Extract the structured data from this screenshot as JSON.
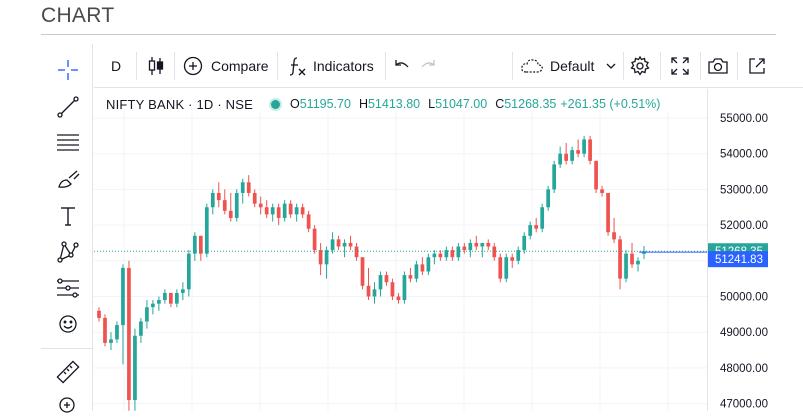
{
  "page": {
    "title": "CHART"
  },
  "toolbar": {
    "interval": "D",
    "compare_label": "Compare",
    "indicators_label": "Indicators",
    "layout_label": "Default"
  },
  "left_tools": [
    {
      "name": "crosshair-icon"
    },
    {
      "name": "trend-line-icon"
    },
    {
      "name": "fib-retracement-icon"
    },
    {
      "name": "brush-icon"
    },
    {
      "name": "text-tool-icon"
    },
    {
      "name": "pattern-icon"
    },
    {
      "name": "prediction-icon"
    },
    {
      "name": "emoji-icon"
    },
    {
      "name": "ruler-icon"
    },
    {
      "name": "zoom-in-icon"
    }
  ],
  "legend": {
    "symbol": "NIFTY BANK · 1D · NSE",
    "o_label": "O",
    "o": "51195.70",
    "h_label": "H",
    "h": "51413.80",
    "l_label": "L",
    "l": "51047.00",
    "c_label": "C",
    "c": "51268.35",
    "change": "+261.35 (+0.51%)"
  },
  "price_axis": {
    "labels": [
      "55000.00",
      "54000.00",
      "53000.00",
      "52000.00",
      "51000.00",
      "50000.00",
      "49000.00",
      "48000.00",
      "47000.00"
    ],
    "last_price": "51268.35",
    "crosshair_price": "51241.83"
  },
  "colors": {
    "up": "#26a69a",
    "down": "#ef5350",
    "last_price_line": "#26a69a",
    "crosshair_label": "#2962ff"
  },
  "chart_data": {
    "type": "candlestick",
    "y_range": [
      46900,
      55700
    ],
    "candles": [
      [
        49600,
        49700,
        49300,
        49400
      ],
      [
        49400,
        49500,
        48600,
        48700
      ],
      [
        48700,
        49000,
        48500,
        48800
      ],
      [
        48800,
        49300,
        48700,
        49200
      ],
      [
        49200,
        50900,
        48100,
        50800
      ],
      [
        50800,
        51000,
        46800,
        47100
      ],
      [
        47100,
        49100,
        46800,
        48900
      ],
      [
        48900,
        49400,
        48700,
        49300
      ],
      [
        49300,
        49900,
        49100,
        49700
      ],
      [
        49700,
        49900,
        49500,
        49800
      ],
      [
        49800,
        50000,
        49600,
        49900
      ],
      [
        49900,
        50200,
        49800,
        50100
      ],
      [
        50100,
        50100,
        49700,
        49800
      ],
      [
        49800,
        50200,
        49700,
        50100
      ],
      [
        50100,
        50400,
        49900,
        50200
      ],
      [
        50200,
        51300,
        50000,
        51200
      ],
      [
        51200,
        51800,
        51000,
        51700
      ],
      [
        51700,
        51700,
        51000,
        51200
      ],
      [
        51200,
        52600,
        51100,
        52500
      ],
      [
        52500,
        53000,
        52300,
        52900
      ],
      [
        52900,
        53200,
        52500,
        52700
      ],
      [
        52700,
        53000,
        52300,
        52400
      ],
      [
        52400,
        52900,
        52100,
        52200
      ],
      [
        52200,
        53000,
        52100,
        52900
      ],
      [
        52900,
        53300,
        52600,
        53200
      ],
      [
        53200,
        53400,
        52800,
        52900
      ],
      [
        52900,
        53000,
        52500,
        52600
      ],
      [
        52600,
        52800,
        52300,
        52500
      ],
      [
        52500,
        52700,
        52200,
        52300
      ],
      [
        52300,
        52600,
        52100,
        52500
      ],
      [
        52500,
        52600,
        52000,
        52200
      ],
      [
        52200,
        52700,
        52100,
        52600
      ],
      [
        52600,
        52700,
        52200,
        52300
      ],
      [
        52300,
        52600,
        52100,
        52500
      ],
      [
        52500,
        52600,
        52200,
        52300
      ],
      [
        52300,
        52400,
        51800,
        51900
      ],
      [
        51900,
        52000,
        51200,
        51300
      ],
      [
        51300,
        51500,
        50600,
        50900
      ],
      [
        50900,
        51400,
        50500,
        51300
      ],
      [
        51300,
        51800,
        51200,
        51600
      ],
      [
        51600,
        51700,
        51300,
        51400
      ],
      [
        51400,
        51600,
        51100,
        51500
      ],
      [
        51500,
        51700,
        51300,
        51400
      ],
      [
        51400,
        51500,
        51000,
        51100
      ],
      [
        51100,
        51100,
        50200,
        50300
      ],
      [
        50300,
        50800,
        49900,
        50000
      ],
      [
        50000,
        50400,
        49800,
        50200
      ],
      [
        50200,
        50700,
        50000,
        50600
      ],
      [
        50600,
        50700,
        50300,
        50400
      ],
      [
        50400,
        50500,
        49900,
        50000
      ],
      [
        50000,
        50100,
        49800,
        49900
      ],
      [
        49900,
        50700,
        49800,
        50600
      ],
      [
        50600,
        50800,
        50400,
        50500
      ],
      [
        50500,
        51000,
        50400,
        50900
      ],
      [
        50900,
        51100,
        50600,
        50700
      ],
      [
        50700,
        51200,
        50600,
        51100
      ],
      [
        51100,
        51300,
        50900,
        51200
      ],
      [
        51200,
        51300,
        51000,
        51100
      ],
      [
        51100,
        51400,
        51000,
        51300
      ],
      [
        51300,
        51400,
        51000,
        51100
      ],
      [
        51100,
        51500,
        51000,
        51400
      ],
      [
        51400,
        51500,
        51200,
        51300
      ],
      [
        51300,
        51600,
        51100,
        51500
      ],
      [
        51500,
        51700,
        51300,
        51400
      ],
      [
        51400,
        51500,
        51100,
        51500
      ],
      [
        51500,
        51600,
        51300,
        51400
      ],
      [
        51400,
        51500,
        51000,
        51100
      ],
      [
        51100,
        51200,
        50400,
        50500
      ],
      [
        50500,
        51200,
        50400,
        51100
      ],
      [
        51100,
        51200,
        50800,
        51000
      ],
      [
        51000,
        51400,
        50900,
        51300
      ],
      [
        51300,
        51800,
        51200,
        51700
      ],
      [
        51700,
        52100,
        51600,
        52000
      ],
      [
        52000,
        52200,
        51800,
        51900
      ],
      [
        51900,
        52600,
        51800,
        52500
      ],
      [
        52500,
        53100,
        52400,
        53000
      ],
      [
        53000,
        53800,
        52900,
        53700
      ],
      [
        53700,
        54200,
        53600,
        54000
      ],
      [
        54000,
        54300,
        53700,
        53800
      ],
      [
        53800,
        54200,
        53700,
        54100
      ],
      [
        54100,
        54400,
        53900,
        54000
      ],
      [
        54000,
        54500,
        53900,
        54400
      ],
      [
        54400,
        54500,
        53700,
        53800
      ],
      [
        53800,
        53800,
        52900,
        53000
      ],
      [
        53000,
        53100,
        52800,
        52900
      ],
      [
        52900,
        52900,
        51700,
        51800
      ],
      [
        51800,
        52200,
        51500,
        51600
      ],
      [
        51600,
        51700,
        50200,
        50500
      ],
      [
        50500,
        51300,
        50400,
        51200
      ],
      [
        51200,
        51500,
        50800,
        50900
      ],
      [
        50900,
        51100,
        50700,
        51000
      ],
      [
        51195.7,
        51413.8,
        51047.0,
        51268.35
      ]
    ]
  }
}
